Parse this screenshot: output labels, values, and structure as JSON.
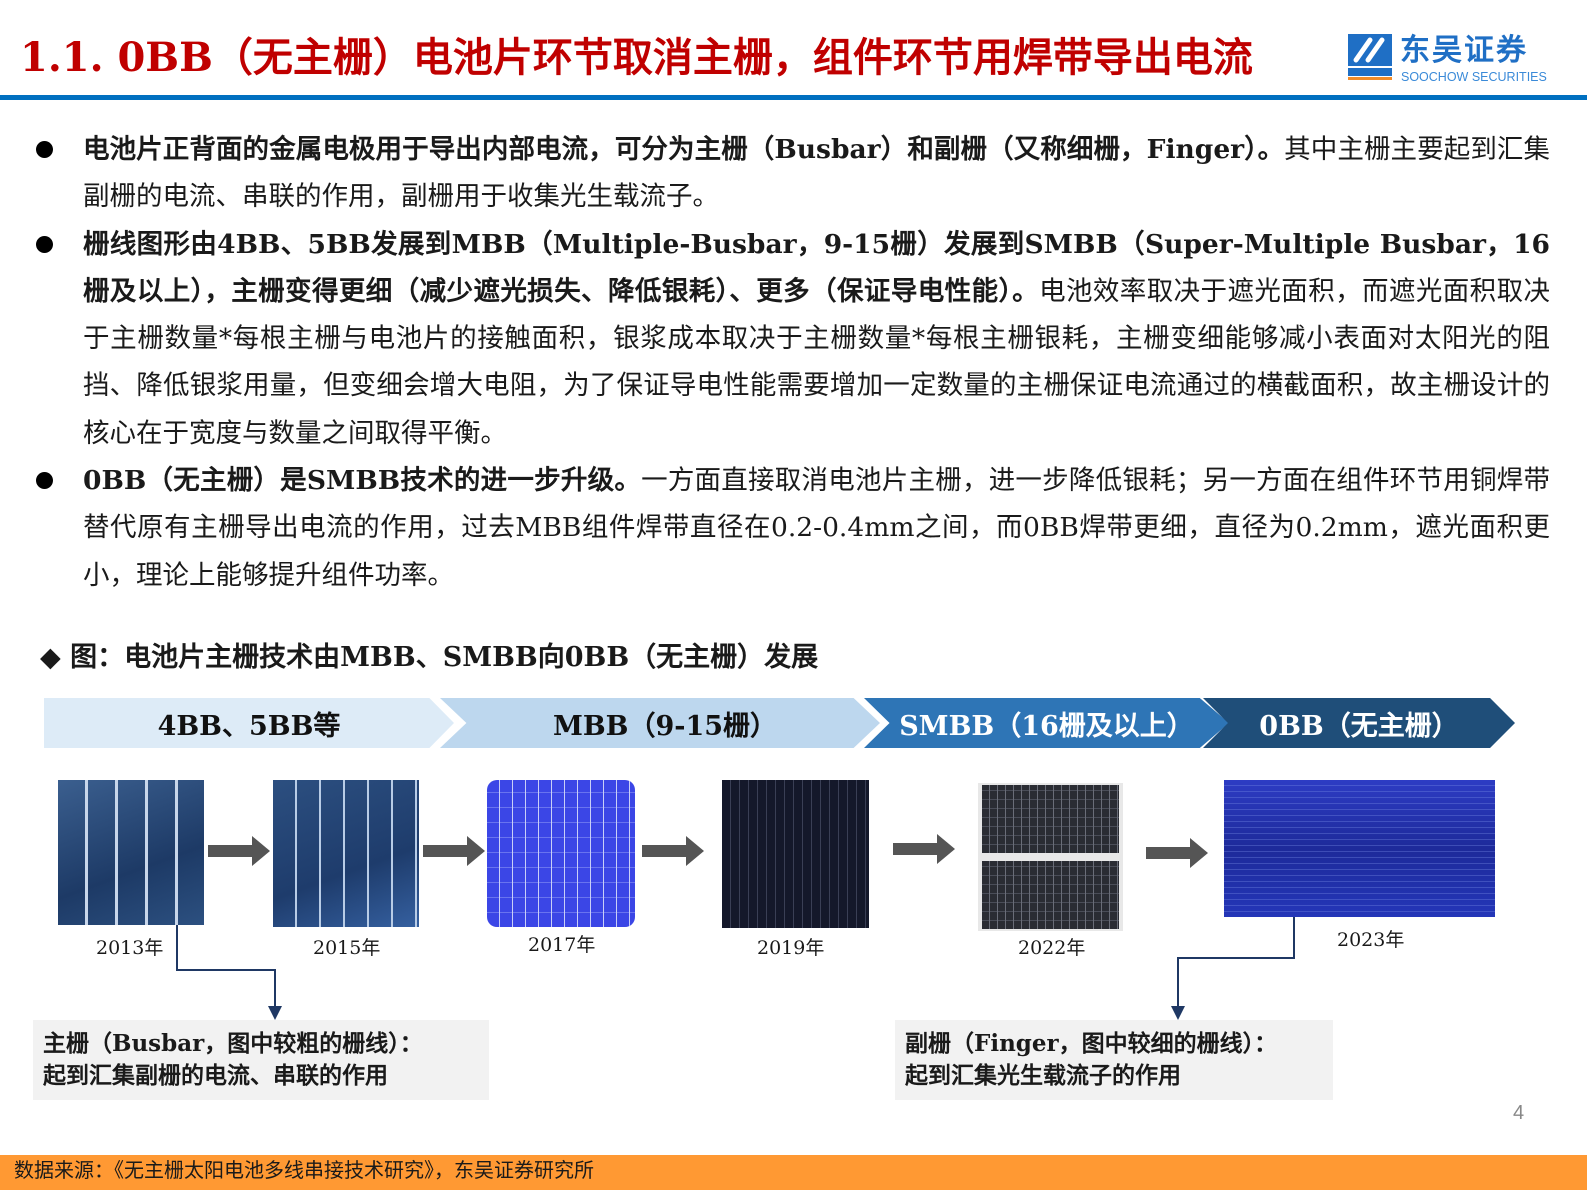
{
  "header": {
    "title": "1.1. 0BB（无主栅）电池片环节取消主栅，组件环节用焊带导出电流",
    "logo": {
      "cn": "东吴证券",
      "en": "SOOCHOW SECURITIES",
      "mark": "SCS"
    },
    "colors": {
      "title": "#C00000",
      "rule": "#0070C0"
    }
  },
  "bullets": [
    {
      "bold": "电池片正背面的金属电极用于导出内部电流，可分为主栅（Busbar）和副栅（又称细栅，Finger）。",
      "normal": "其中主栅主要起到汇集副栅的电流、串联的作用，副栅用于收集光生载流子。"
    },
    {
      "bold": "栅线图形由4BB、5BB发展到MBB（Multiple-Busbar，9-15栅）发展到SMBB（Super-Multiple Busbar，16栅及以上），主栅变得更细（减少遮光损失、降低银耗）、更多（保证导电性能）。",
      "normal": "电池效率取决于遮光面积，而遮光面积取决于主栅数量*每根主栅与电池片的接触面积，银浆成本取决于主栅数量*每根主栅银耗，主栅变细能够减小表面对太阳光的阻挡、降低银浆用量，但变细会增大电阻，为了保证导电性能需要增加一定数量的主栅保证电流通过的横截面积，故主栅设计的核心在于宽度与数量之间取得平衡。"
    },
    {
      "bold": "0BB（无主栅）是SMBB技术的进一步升级。",
      "normal": "一方面直接取消电池片主栅，进一步降低银耗；另一方面在组件环节用铜焊带替代原有主栅导出电流的作用，过去MBB组件焊带直径在0.2-0.4mm之间，而0BB焊带更细，直径为0.2mm，遮光面积更小，理论上能够提升组件功率。"
    }
  ],
  "figure": {
    "caption": "◆ 图：电池片主栅技术由MBB、SMBB向0BB（无主栅）发展",
    "stages": [
      {
        "label": "4BB、5BB等",
        "color": "#DDEBF7"
      },
      {
        "label": "MBB（9-15栅）",
        "color": "#BDD7EE"
      },
      {
        "label": "SMBB（16栅及以上）",
        "color": "#2E75B6"
      },
      {
        "label": "0BB（无主栅）",
        "color": "#1F4E79"
      }
    ],
    "years": [
      "2013年",
      "2015年",
      "2017年",
      "2019年",
      "2022年",
      "2023年"
    ],
    "callouts": [
      {
        "line1": "主栅（Busbar，图中较粗的栅线）：",
        "line2": "起到汇集副栅的电流、串联的作用"
      },
      {
        "line1": "副栅（Finger，图中较细的栅线）：",
        "line2": "起到汇集光生载流子的作用"
      }
    ]
  },
  "page_number": "4",
  "footer": {
    "source": "数据来源：《无主栅太阳电池多线串接技术研究》，东吴证券研究所",
    "color": "#FF9933"
  }
}
